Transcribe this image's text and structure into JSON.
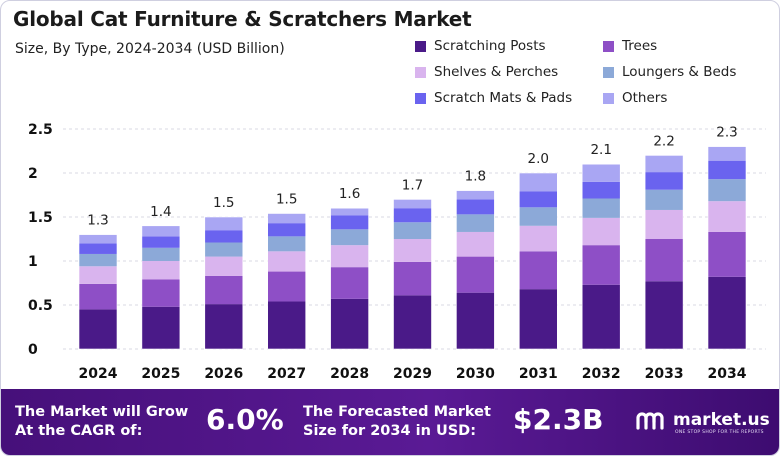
{
  "title": "Global Cat Furniture & Scratchers Market",
  "subtitle": "Size, By Type, 2024-2034 (USD Billion)",
  "legend": [
    {
      "label": "Scratching Posts",
      "color": "#4a1a88"
    },
    {
      "label": "Trees",
      "color": "#8e4fc6"
    },
    {
      "label": "Shelves & Perches",
      "color": "#d9b4ee"
    },
    {
      "label": "Loungers & Beds",
      "color": "#8ca9d8"
    },
    {
      "label": "Scratch Mats & Pads",
      "color": "#6a63ef"
    },
    {
      "label": "Others",
      "color": "#a9a6f3"
    }
  ],
  "chart_data": {
    "type": "bar",
    "stacked": true,
    "title": "Global Cat Furniture & Scratchers Market",
    "subtitle": "Size, By Type, 2024-2034 (USD Billion)",
    "xlabel": "",
    "ylabel": "",
    "categories": [
      "2024",
      "2025",
      "2026",
      "2027",
      "2028",
      "2029",
      "2030",
      "2031",
      "2032",
      "2033",
      "2034"
    ],
    "totals": [
      1.3,
      1.4,
      1.5,
      1.5,
      1.6,
      1.7,
      1.8,
      2.0,
      2.1,
      2.2,
      2.3
    ],
    "total_labels": [
      "1.3",
      "1.4",
      "1.5",
      "1.5",
      "1.6",
      "1.7",
      "1.8",
      "2.0",
      "2.1",
      "2.2",
      "2.3"
    ],
    "series": [
      {
        "name": "Scratching Posts",
        "color": "#4a1a88",
        "values": [
          0.45,
          0.48,
          0.51,
          0.54,
          0.57,
          0.61,
          0.64,
          0.68,
          0.73,
          0.77,
          0.82
        ]
      },
      {
        "name": "Trees",
        "color": "#8e4fc6",
        "values": [
          0.29,
          0.31,
          0.32,
          0.34,
          0.36,
          0.38,
          0.41,
          0.43,
          0.45,
          0.48,
          0.51
        ]
      },
      {
        "name": "Shelves & Perches",
        "color": "#d9b4ee",
        "values": [
          0.2,
          0.21,
          0.22,
          0.23,
          0.25,
          0.26,
          0.28,
          0.29,
          0.31,
          0.33,
          0.35
        ]
      },
      {
        "name": "Loungers & Beds",
        "color": "#8ca9d8",
        "values": [
          0.14,
          0.15,
          0.16,
          0.17,
          0.18,
          0.19,
          0.2,
          0.21,
          0.22,
          0.23,
          0.25
        ]
      },
      {
        "name": "Scratch Mats & Pads",
        "color": "#6a63ef",
        "values": [
          0.12,
          0.13,
          0.14,
          0.15,
          0.16,
          0.16,
          0.17,
          0.18,
          0.19,
          0.2,
          0.21
        ]
      },
      {
        "name": "Others",
        "color": "#a9a6f3",
        "values": [
          0.1,
          0.12,
          0.15,
          0.11,
          0.08,
          0.1,
          0.1,
          0.21,
          0.2,
          0.19,
          0.16
        ]
      }
    ],
    "ylim": [
      0,
      2.5
    ],
    "yticks": [
      0,
      0.5,
      1,
      1.5,
      2,
      2.5
    ],
    "ytick_labels": [
      "0",
      "0.5",
      "1",
      "1.5",
      "2",
      "2.5"
    ],
    "grid": true,
    "legend_position": "top-right"
  },
  "footer": {
    "cagr_label": "The Market will Grow At the CAGR of:",
    "cagr_value": "6.0%",
    "forecast_label": "The Forecasted Market Size for 2034 in USD:",
    "forecast_value": "$2.3B",
    "brand": "market.us",
    "brand_tagline": "ONE STOP SHOP FOR THE REPORTS"
  }
}
